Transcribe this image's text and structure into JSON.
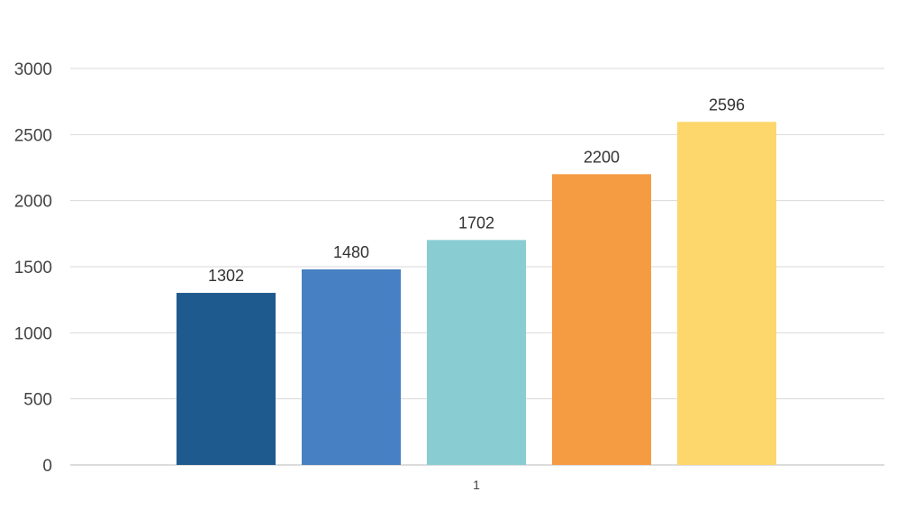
{
  "chart_data": {
    "type": "bar",
    "categories": [
      "1"
    ],
    "series": [
      {
        "values": [
          1302
        ],
        "color": "#1F5A8E"
      },
      {
        "values": [
          1480
        ],
        "color": "#4780C3"
      },
      {
        "values": [
          1702
        ],
        "color": "#89CDD3"
      },
      {
        "values": [
          2200
        ],
        "color": "#F59B42"
      },
      {
        "values": [
          2596
        ],
        "color": "#FDD76B"
      }
    ],
    "yticks": [
      "0",
      "500",
      "1000",
      "1500",
      "2000",
      "2500",
      "3000"
    ],
    "ylim": [
      0,
      3000
    ],
    "grid": true,
    "legend": "none",
    "data_labels": true
  }
}
